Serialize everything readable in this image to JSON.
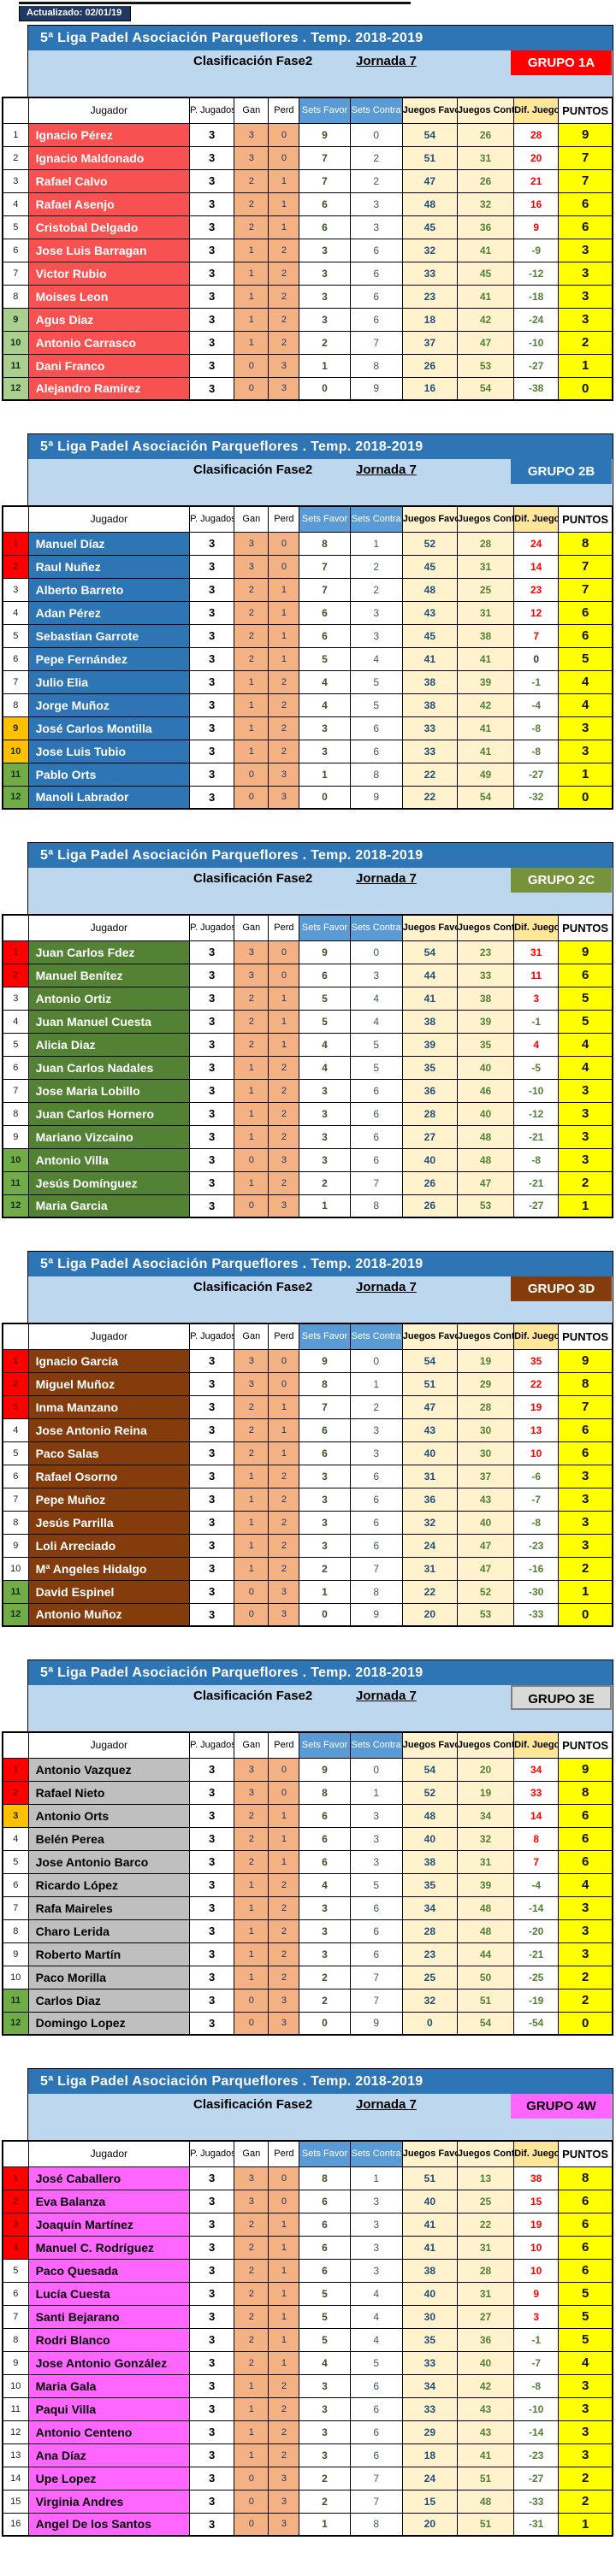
{
  "updated_label": "Actualizado: 02/01/19",
  "league_title": "5ª Liga Padel Asociación Parqueflores . Temp. 2018-2019",
  "phase_label": "Clasificación Fase2",
  "jornada_label": "Jornada 7",
  "columns": [
    "Jugador",
    "P. Jugados",
    "Gan",
    "Perd",
    "Sets Favor",
    "Sets Contra",
    "Juegos Favor",
    "Juegos Contra",
    "Dif. Juegos",
    "PUNTOS"
  ],
  "palette": {
    "title_bar": "#2E75B6",
    "subheader_band": "#BDD7EE",
    "sets_header": "#5B9BD5",
    "juegos_fill": "#FFF2CC",
    "dif_header_fill": "#FFE699",
    "gan_perd_fill": "#F4B183",
    "puntos_fill": "#FFFF00",
    "dif_positive": "#FF0000",
    "dif_negative": "#538135",
    "updated_bar": "#1F3864"
  },
  "zone_colors": {
    "red": "#FF0000",
    "amber": "#FFC000",
    "green": "#70AD47",
    "pale_green": "#A9D08E"
  },
  "row_fields": [
    "player",
    "p_jugados",
    "gan",
    "perd",
    "sets_favor",
    "sets_contra",
    "juegos_favor",
    "juegos_contra",
    "dif_juegos",
    "puntos",
    "rank_zone"
  ],
  "groups": [
    {
      "name": "GRUPO 1A",
      "colors": {
        "badge_bg": "#FF0000",
        "badge_text": "#FFFFFF",
        "player_bg": "#F85151",
        "player_text": "#FFFFFF"
      },
      "rows": [
        [
          "Ignacio Pérez",
          3,
          3,
          0,
          9,
          0,
          54,
          26,
          28,
          9,
          ""
        ],
        [
          "Ignacio Maldonado",
          3,
          3,
          0,
          7,
          2,
          51,
          31,
          20,
          7,
          ""
        ],
        [
          "Rafael Calvo",
          3,
          2,
          1,
          7,
          2,
          47,
          26,
          21,
          7,
          ""
        ],
        [
          "Rafael Asenjo",
          3,
          2,
          1,
          6,
          3,
          48,
          32,
          16,
          6,
          ""
        ],
        [
          "Cristobal Delgado",
          3,
          2,
          1,
          6,
          3,
          45,
          36,
          9,
          6,
          ""
        ],
        [
          "Jose Luis Barragan",
          3,
          1,
          2,
          3,
          6,
          32,
          41,
          -9,
          3,
          ""
        ],
        [
          "Victor Rubio",
          3,
          1,
          2,
          3,
          6,
          33,
          45,
          -12,
          3,
          ""
        ],
        [
          "Moises Leon",
          3,
          1,
          2,
          3,
          6,
          23,
          41,
          -18,
          3,
          ""
        ],
        [
          "Agus Diaz",
          3,
          1,
          2,
          3,
          6,
          18,
          42,
          -24,
          3,
          "pale_green"
        ],
        [
          "Antonio Carrasco",
          3,
          1,
          2,
          2,
          7,
          37,
          47,
          -10,
          2,
          "pale_green"
        ],
        [
          "Dani Franco",
          3,
          0,
          3,
          1,
          8,
          26,
          53,
          -27,
          1,
          "pale_green"
        ],
        [
          "Alejandro Ramírez",
          3,
          0,
          3,
          0,
          9,
          16,
          54,
          -38,
          0,
          "pale_green"
        ]
      ]
    },
    {
      "name": "GRUPO 2B",
      "colors": {
        "badge_bg": "#2E75B6",
        "badge_text": "#FFFFFF",
        "player_bg": "#2E75B6",
        "player_text": "#FFFFFF"
      },
      "rows": [
        [
          "Manuel Díaz",
          3,
          3,
          0,
          8,
          1,
          52,
          28,
          24,
          8,
          "red"
        ],
        [
          "Raul Nuñez",
          3,
          3,
          0,
          7,
          2,
          45,
          31,
          14,
          7,
          "red"
        ],
        [
          "Alberto Barreto",
          3,
          2,
          1,
          7,
          2,
          48,
          25,
          23,
          7,
          ""
        ],
        [
          "Adan Pérez",
          3,
          2,
          1,
          6,
          3,
          43,
          31,
          12,
          6,
          ""
        ],
        [
          "Sebastian Garrote",
          3,
          2,
          1,
          6,
          3,
          45,
          38,
          7,
          6,
          ""
        ],
        [
          "Pepe Fernández",
          3,
          2,
          1,
          5,
          4,
          41,
          41,
          0,
          5,
          ""
        ],
        [
          "Julio Elia",
          3,
          1,
          2,
          4,
          5,
          38,
          39,
          -1,
          4,
          ""
        ],
        [
          "Jorge Muñoz",
          3,
          1,
          2,
          4,
          5,
          38,
          42,
          -4,
          4,
          ""
        ],
        [
          "José Carlos Montilla",
          3,
          1,
          2,
          3,
          6,
          33,
          41,
          -8,
          3,
          "amber"
        ],
        [
          "Jose Luis Tubio",
          3,
          1,
          2,
          3,
          6,
          33,
          41,
          -8,
          3,
          "amber"
        ],
        [
          "Pablo Orts",
          3,
          0,
          3,
          1,
          8,
          22,
          49,
          -27,
          1,
          "green"
        ],
        [
          "Manoli Labrador",
          3,
          0,
          3,
          0,
          9,
          22,
          54,
          -32,
          0,
          "green"
        ]
      ]
    },
    {
      "name": "GRUPO 2C",
      "colors": {
        "badge_bg": "#76933C",
        "badge_text": "#FFFFFF",
        "player_bg": "#548235",
        "player_text": "#FFFFFF"
      },
      "rows": [
        [
          "Juan Carlos Fdez",
          3,
          3,
          0,
          9,
          0,
          54,
          23,
          31,
          9,
          "red"
        ],
        [
          "Manuel Benítez",
          3,
          3,
          0,
          6,
          3,
          44,
          33,
          11,
          6,
          "red"
        ],
        [
          "Antonio Ortiz",
          3,
          2,
          1,
          5,
          4,
          41,
          38,
          3,
          5,
          ""
        ],
        [
          "Juan Manuel Cuesta",
          3,
          2,
          1,
          5,
          4,
          38,
          39,
          -1,
          5,
          ""
        ],
        [
          "Alicia Diaz",
          3,
          2,
          1,
          4,
          5,
          39,
          35,
          4,
          4,
          ""
        ],
        [
          "Juan Carlos Nadales",
          3,
          1,
          2,
          4,
          5,
          35,
          40,
          -5,
          4,
          ""
        ],
        [
          "Jose Maria Lobillo",
          3,
          1,
          2,
          3,
          6,
          36,
          46,
          -10,
          3,
          ""
        ],
        [
          "Juan Carlos Hornero",
          3,
          1,
          2,
          3,
          6,
          28,
          40,
          -12,
          3,
          ""
        ],
        [
          "Mariano Vizcaino",
          3,
          1,
          2,
          3,
          6,
          27,
          48,
          -21,
          3,
          ""
        ],
        [
          "Antonio Villa",
          3,
          0,
          3,
          3,
          6,
          40,
          48,
          -8,
          3,
          "green"
        ],
        [
          "Jesús Domínguez",
          3,
          1,
          2,
          2,
          7,
          26,
          47,
          -21,
          2,
          "green"
        ],
        [
          "Maria Garcia",
          3,
          0,
          3,
          1,
          8,
          26,
          53,
          -27,
          1,
          "green"
        ]
      ]
    },
    {
      "name": "GRUPO 3D",
      "colors": {
        "badge_bg": "#843C0C",
        "badge_text": "#FFFFFF",
        "player_bg": "#843C0C",
        "player_text": "#FFFFFF"
      },
      "rows": [
        [
          "Ignacio García",
          3,
          3,
          0,
          9,
          0,
          54,
          19,
          35,
          9,
          "red"
        ],
        [
          "Miguel Muñoz",
          3,
          3,
          0,
          8,
          1,
          51,
          29,
          22,
          8,
          "red"
        ],
        [
          "Inma Manzano",
          3,
          2,
          1,
          7,
          2,
          47,
          28,
          19,
          7,
          "red"
        ],
        [
          "Jose Antonio Reina",
          3,
          2,
          1,
          6,
          3,
          43,
          30,
          13,
          6,
          ""
        ],
        [
          "Paco Salas",
          3,
          2,
          1,
          6,
          3,
          40,
          30,
          10,
          6,
          ""
        ],
        [
          "Rafael Osorno",
          3,
          1,
          2,
          3,
          6,
          31,
          37,
          -6,
          3,
          ""
        ],
        [
          "Pepe Muñoz",
          3,
          1,
          2,
          3,
          6,
          36,
          43,
          -7,
          3,
          ""
        ],
        [
          "Jesús Parrilla",
          3,
          1,
          2,
          3,
          6,
          32,
          40,
          -8,
          3,
          ""
        ],
        [
          "Loli Arreciado",
          3,
          1,
          2,
          3,
          6,
          24,
          47,
          -23,
          3,
          ""
        ],
        [
          "Mª Angeles Hidalgo",
          3,
          1,
          2,
          2,
          7,
          31,
          47,
          -16,
          2,
          ""
        ],
        [
          "David Espinel",
          3,
          0,
          3,
          1,
          8,
          22,
          52,
          -30,
          1,
          "green"
        ],
        [
          "Antonio Muñoz",
          3,
          0,
          3,
          0,
          9,
          20,
          53,
          -33,
          0,
          "green"
        ]
      ]
    },
    {
      "name": "GRUPO 3E",
      "colors": {
        "badge_bg": "#D9D9D9",
        "badge_text": "#000000",
        "badge_border": "#7F7F7F",
        "player_bg": "#BFBFBF",
        "player_text": "#000000"
      },
      "rows": [
        [
          "Antonio Vazquez",
          3,
          3,
          0,
          9,
          0,
          54,
          20,
          34,
          9,
          "red"
        ],
        [
          "Rafael Nieto",
          3,
          3,
          0,
          8,
          1,
          52,
          19,
          33,
          8,
          "red"
        ],
        [
          "Antonio Orts",
          3,
          2,
          1,
          6,
          3,
          48,
          34,
          14,
          6,
          "amber"
        ],
        [
          "Belén Perea",
          3,
          2,
          1,
          6,
          3,
          40,
          32,
          8,
          6,
          ""
        ],
        [
          "Jose Antonio Barco",
          3,
          2,
          1,
          6,
          3,
          38,
          31,
          7,
          6,
          ""
        ],
        [
          "Ricardo López",
          3,
          1,
          2,
          4,
          5,
          35,
          39,
          -4,
          4,
          ""
        ],
        [
          "Rafa Maireles",
          3,
          1,
          2,
          3,
          6,
          34,
          48,
          -14,
          3,
          ""
        ],
        [
          "Charo Lerida",
          3,
          1,
          2,
          3,
          6,
          28,
          48,
          -20,
          3,
          ""
        ],
        [
          "Roberto Martín",
          3,
          1,
          2,
          3,
          6,
          23,
          44,
          -21,
          3,
          ""
        ],
        [
          "Paco Morilla",
          3,
          1,
          2,
          2,
          7,
          25,
          50,
          -25,
          2,
          ""
        ],
        [
          "Carlos Diaz",
          3,
          0,
          3,
          2,
          7,
          32,
          51,
          -19,
          2,
          "green"
        ],
        [
          "Domingo Lopez",
          3,
          0,
          3,
          0,
          9,
          0,
          54,
          -54,
          0,
          "green"
        ]
      ]
    },
    {
      "name": "GRUPO 4W",
      "colors": {
        "badge_bg": "#FF66FF",
        "badge_text": "#000000",
        "player_bg": "#FF66FF",
        "player_text": "#000000"
      },
      "rows": [
        [
          "José Caballero",
          3,
          3,
          0,
          8,
          1,
          51,
          13,
          38,
          8,
          "red"
        ],
        [
          "Eva Balanza",
          3,
          3,
          0,
          6,
          3,
          40,
          25,
          15,
          6,
          "red"
        ],
        [
          "Joaquín Martínez",
          3,
          2,
          1,
          6,
          3,
          41,
          22,
          19,
          6,
          "red"
        ],
        [
          "Manuel C. Rodríguez",
          3,
          2,
          1,
          6,
          3,
          41,
          31,
          10,
          6,
          "red"
        ],
        [
          "Paco Quesada",
          3,
          2,
          1,
          6,
          3,
          38,
          28,
          10,
          6,
          ""
        ],
        [
          "Lucía Cuesta",
          3,
          2,
          1,
          5,
          4,
          40,
          31,
          9,
          5,
          ""
        ],
        [
          "Santi Bejarano",
          3,
          2,
          1,
          5,
          4,
          30,
          27,
          3,
          5,
          ""
        ],
        [
          "Rodri Blanco",
          3,
          2,
          1,
          5,
          4,
          35,
          36,
          -1,
          5,
          ""
        ],
        [
          "Jose Antonio González",
          3,
          2,
          1,
          4,
          5,
          33,
          40,
          -7,
          4,
          ""
        ],
        [
          "Maria Gala",
          3,
          1,
          2,
          3,
          6,
          34,
          42,
          -8,
          3,
          ""
        ],
        [
          "Paqui Villa",
          3,
          1,
          2,
          3,
          6,
          33,
          43,
          -10,
          3,
          ""
        ],
        [
          "Antonio Centeno",
          3,
          1,
          2,
          3,
          6,
          29,
          43,
          -14,
          3,
          ""
        ],
        [
          "Ana Díaz",
          3,
          1,
          2,
          3,
          6,
          18,
          41,
          -23,
          3,
          ""
        ],
        [
          "Upe Lopez",
          3,
          0,
          3,
          2,
          7,
          24,
          51,
          -27,
          2,
          ""
        ],
        [
          "Virginia Andres",
          3,
          0,
          3,
          2,
          7,
          15,
          48,
          -33,
          2,
          ""
        ],
        [
          "Angel De los Santos",
          3,
          0,
          3,
          1,
          8,
          20,
          51,
          -31,
          1,
          ""
        ]
      ]
    }
  ]
}
